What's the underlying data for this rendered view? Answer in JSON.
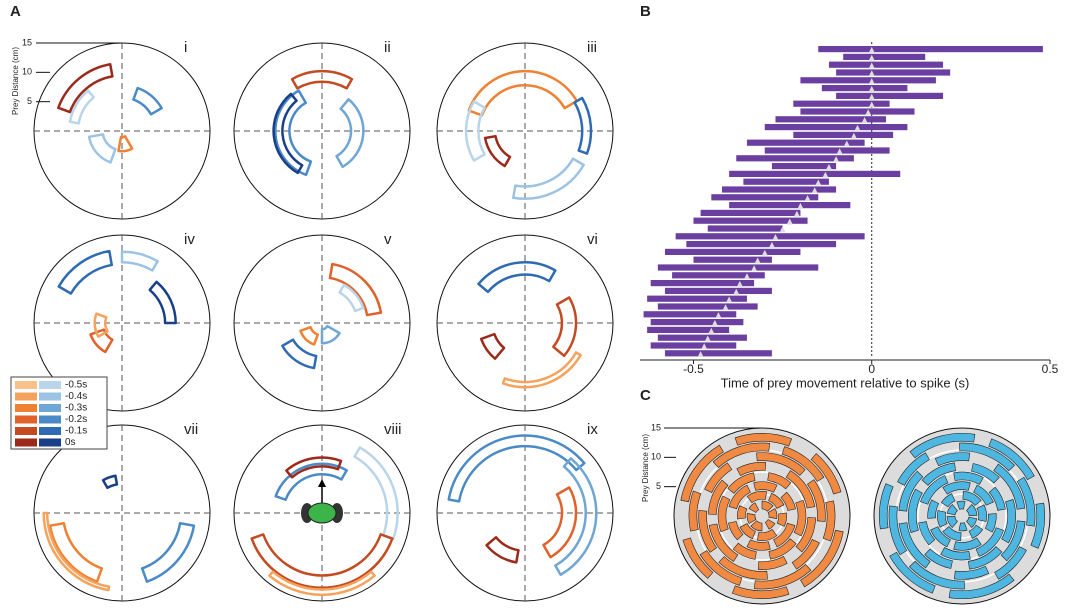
{
  "panel_labels": [
    "A",
    "B",
    "C"
  ],
  "panel_a": {
    "plots": [
      "i",
      "ii",
      "iii",
      "iv",
      "v",
      "vi",
      "vii",
      "viii",
      "ix"
    ],
    "radial_axis_label": "Prey Distance (cm)",
    "rlim": [
      0,
      15
    ],
    "rticks": [
      15,
      10,
      5
    ],
    "legend": [
      "-0.5s",
      "-0.4s",
      "-0.3s",
      "-0.2s",
      "-0.1s",
      "0s"
    ]
  },
  "panel_b": {
    "type": "bar",
    "xlabel": "Time of prey movement relative to spike (s)",
    "xlim": [
      -0.65,
      0.5
    ],
    "xticks": [
      -0.5,
      0,
      0.5
    ],
    "color": "#6b3fa0",
    "starts": [
      -0.15,
      -0.08,
      -0.12,
      -0.1,
      -0.2,
      -0.14,
      -0.1,
      -0.22,
      -0.2,
      -0.27,
      -0.3,
      -0.22,
      -0.35,
      -0.3,
      -0.38,
      -0.28,
      -0.4,
      -0.36,
      -0.42,
      -0.45,
      -0.4,
      -0.48,
      -0.5,
      -0.46,
      -0.55,
      -0.52,
      -0.58,
      -0.5,
      -0.6,
      -0.56,
      -0.62,
      -0.58,
      -0.63,
      -0.6,
      -0.64,
      -0.62,
      -0.63,
      -0.6,
      -0.62,
      -0.58
    ],
    "ends": [
      0.48,
      0.15,
      0.2,
      0.22,
      0.18,
      0.1,
      0.2,
      0.05,
      0.12,
      0.04,
      0.1,
      0.06,
      -0.02,
      0.05,
      -0.05,
      -0.1,
      0.08,
      -0.12,
      -0.1,
      -0.15,
      -0.06,
      -0.2,
      -0.18,
      -0.25,
      -0.02,
      -0.1,
      -0.2,
      -0.28,
      -0.15,
      -0.3,
      -0.33,
      -0.28,
      -0.35,
      -0.32,
      -0.38,
      -0.36,
      -0.4,
      -0.35,
      -0.38,
      -0.28
    ],
    "markers": [
      0,
      0,
      0,
      0,
      0,
      0,
      0,
      0,
      -0.01,
      -0.02,
      -0.04,
      -0.05,
      -0.07,
      -0.09,
      -0.1,
      -0.12,
      -0.13,
      -0.15,
      -0.16,
      -0.18,
      -0.2,
      -0.21,
      -0.23,
      -0.25,
      -0.27,
      -0.28,
      -0.3,
      -0.32,
      -0.33,
      -0.35,
      -0.37,
      -0.38,
      -0.4,
      -0.41,
      -0.43,
      -0.44,
      -0.45,
      -0.46,
      -0.47,
      -0.48
    ]
  },
  "panel_c": {
    "radial_axis_label": "Prey Distance (cm)",
    "rlim": [
      0,
      15
    ],
    "rticks": [
      15,
      10,
      5
    ]
  }
}
